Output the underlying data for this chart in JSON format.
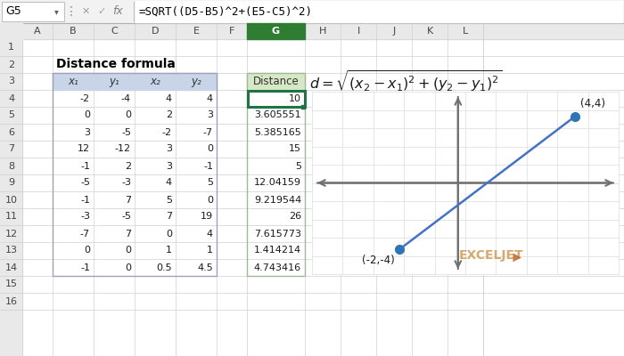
{
  "title": "Distance formula",
  "formula_bar_cell": "G5",
  "formula_bar_text": "=SQRT((D5-B5)^2+(E5-C5)^2)",
  "col_headers": [
    "A",
    "B",
    "C",
    "D",
    "E",
    "F",
    "G",
    "H",
    "I",
    "J",
    "K",
    "L"
  ],
  "row_headers": [
    "1",
    "2",
    "3",
    "4",
    "5",
    "6",
    "7",
    "8",
    "9",
    "10",
    "11",
    "12",
    "13",
    "14",
    "15",
    "16"
  ],
  "table_headers": [
    "x₁",
    "y₁",
    "x₂",
    "y₂"
  ],
  "distance_header": "Distance",
  "data_rows": [
    [
      -2,
      -4,
      4,
      4,
      10
    ],
    [
      0,
      0,
      2,
      3,
      3.605551
    ],
    [
      3,
      -5,
      -2,
      -7,
      5.385165
    ],
    [
      12,
      -12,
      3,
      0,
      15
    ],
    [
      -1,
      2,
      3,
      -1,
      5
    ],
    [
      -5,
      -3,
      4,
      5,
      12.04159
    ],
    [
      -1,
      7,
      5,
      0,
      9.219544
    ],
    [
      -3,
      -5,
      7,
      19,
      26
    ],
    [
      -7,
      7,
      0,
      4,
      7.615773
    ],
    [
      0,
      0,
      1,
      1,
      1.414214
    ],
    [
      -1,
      0,
      0.5,
      4.5,
      4.743416
    ]
  ],
  "selected_cell_color": "#217346",
  "header_bg": "#c8d4e8",
  "distance_header_bg": "#d6e8c5",
  "col_header_bg": "#e9e9e9",
  "row_header_bg": "#e9e9e9",
  "col_header_selected_bg": "#2e7d32",
  "bg_color": "#ffffff",
  "grid_line_color": "#d0d0d0",
  "formula_bar_bg": "#f2f2f2",
  "point1": [
    -2,
    -4
  ],
  "point2": [
    4,
    4
  ],
  "plot_bg": "#f0f0f0",
  "line_color": "#4472c4",
  "point_color": "#2e75b6",
  "axis_color": "#707070",
  "watermark": "EXCELJET",
  "watermark_color": "#d4a060",
  "watermark_arrow_color": "#c07030"
}
